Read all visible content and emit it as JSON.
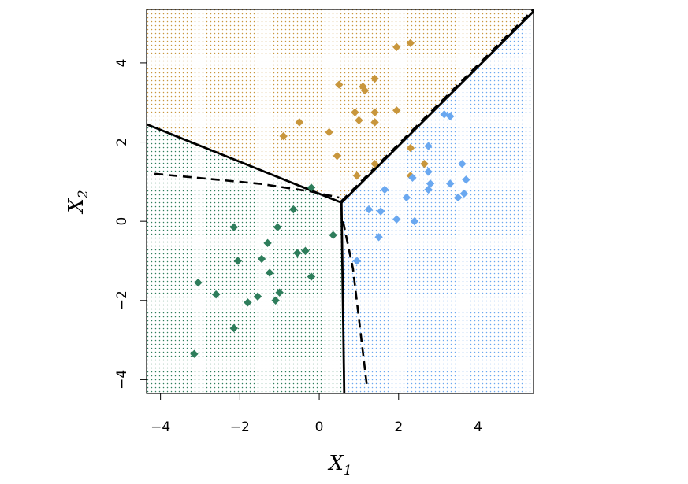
{
  "chart_data": {
    "type": "scatter",
    "xlabel": "X",
    "xlabel_sub": "1",
    "ylabel": "X",
    "ylabel_sub": "2",
    "xlim": [
      -4.35,
      5.4
    ],
    "ylim": [
      -4.35,
      5.35
    ],
    "xticks": [
      -4,
      -2,
      0,
      2,
      4
    ],
    "yticks": [
      -4,
      -2,
      0,
      2,
      4
    ],
    "xtick_labels": [
      "−4",
      "−2",
      "0",
      "2",
      "4"
    ],
    "ytick_labels": [
      "−4",
      "−2",
      "0",
      "2",
      "4"
    ],
    "regions": [
      {
        "class": "orange",
        "color": "#C8963C",
        "polygon": [
          [
            -4.35,
            2.45
          ],
          [
            0.56,
            0.47
          ],
          [
            5.4,
            5.3
          ],
          [
            5.4,
            5.35
          ],
          [
            -4.35,
            5.35
          ]
        ]
      },
      {
        "class": "green",
        "color": "#2E7D5B",
        "polygon": [
          [
            -4.35,
            -4.35
          ],
          [
            0.63,
            -4.35
          ],
          [
            0.56,
            0.47
          ],
          [
            -4.35,
            2.45
          ]
        ]
      },
      {
        "class": "blue",
        "color": "#6AA8F0",
        "polygon": [
          [
            0.63,
            -4.35
          ],
          [
            5.4,
            -4.35
          ],
          [
            5.4,
            5.3
          ],
          [
            0.56,
            0.47
          ]
        ]
      }
    ],
    "boundaries": {
      "solid": [
        [
          [
            -4.35,
            2.45
          ],
          [
            0.56,
            0.47
          ]
        ],
        [
          [
            0.56,
            0.47
          ],
          [
            5.4,
            5.3
          ]
        ],
        [
          [
            0.56,
            0.47
          ],
          [
            0.63,
            -4.35
          ]
        ]
      ],
      "dashed": [
        [
          [
            -4.15,
            1.2
          ],
          [
            -1.5,
            0.95
          ],
          [
            -0.2,
            0.75
          ],
          [
            0.5,
            0.6
          ]
        ],
        [
          [
            0.55,
            0.5
          ],
          [
            5.4,
            5.35
          ]
        ],
        [
          [
            0.6,
            0.0
          ],
          [
            0.85,
            -1.2
          ],
          [
            1.2,
            -4.15
          ]
        ]
      ]
    },
    "series": [
      {
        "name": "orange",
        "color": "#C8963C",
        "points": [
          [
            2.3,
            4.5
          ],
          [
            1.95,
            4.4
          ],
          [
            0.5,
            3.45
          ],
          [
            1.1,
            3.4
          ],
          [
            1.4,
            3.6
          ],
          [
            1.15,
            3.3
          ],
          [
            0.9,
            2.75
          ],
          [
            1.4,
            2.75
          ],
          [
            1.95,
            2.8
          ],
          [
            -0.5,
            2.5
          ],
          [
            1.0,
            2.55
          ],
          [
            1.4,
            2.5
          ],
          [
            0.25,
            2.25
          ],
          [
            -0.9,
            2.15
          ],
          [
            2.3,
            1.85
          ],
          [
            0.45,
            1.65
          ],
          [
            2.65,
            1.45
          ],
          [
            1.4,
            1.45
          ],
          [
            0.95,
            1.15
          ],
          [
            2.3,
            1.15
          ]
        ]
      },
      {
        "name": "blue",
        "color": "#6AA8F0",
        "points": [
          [
            3.15,
            2.7
          ],
          [
            3.3,
            2.65
          ],
          [
            2.75,
            1.9
          ],
          [
            3.6,
            1.45
          ],
          [
            2.75,
            1.25
          ],
          [
            2.35,
            1.1
          ],
          [
            3.7,
            1.05
          ],
          [
            2.8,
            0.95
          ],
          [
            3.3,
            0.95
          ],
          [
            1.65,
            0.8
          ],
          [
            2.75,
            0.8
          ],
          [
            3.65,
            0.7
          ],
          [
            2.2,
            0.6
          ],
          [
            3.5,
            0.6
          ],
          [
            1.25,
            0.3
          ],
          [
            1.55,
            0.25
          ],
          [
            1.95,
            0.05
          ],
          [
            2.4,
            0.0
          ],
          [
            1.5,
            -0.4
          ],
          [
            0.95,
            -1.0
          ]
        ]
      },
      {
        "name": "green",
        "color": "#2E7D5B",
        "points": [
          [
            -0.2,
            0.85
          ],
          [
            -0.65,
            0.3
          ],
          [
            -2.15,
            -0.15
          ],
          [
            -1.05,
            -0.15
          ],
          [
            0.35,
            -0.35
          ],
          [
            -1.3,
            -0.55
          ],
          [
            -0.55,
            -0.8
          ],
          [
            -0.35,
            -0.75
          ],
          [
            -2.05,
            -1.0
          ],
          [
            -1.45,
            -0.95
          ],
          [
            -1.25,
            -1.3
          ],
          [
            -0.2,
            -1.4
          ],
          [
            -3.05,
            -1.55
          ],
          [
            -2.6,
            -1.85
          ],
          [
            -1.0,
            -1.8
          ],
          [
            -1.55,
            -1.9
          ],
          [
            -1.8,
            -2.05
          ],
          [
            -1.1,
            -2.0
          ],
          [
            -2.15,
            -2.7
          ],
          [
            -3.15,
            -3.35
          ]
        ]
      }
    ]
  }
}
